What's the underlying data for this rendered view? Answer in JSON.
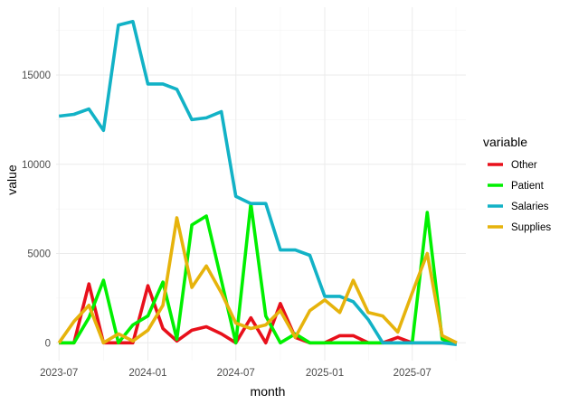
{
  "chart_data": {
    "type": "line",
    "xlabel": "month",
    "ylabel": "value",
    "legend_title": "variable",
    "legend_position": "right",
    "grid": true,
    "x": [
      "2023-07",
      "2023-08",
      "2023-09",
      "2023-10",
      "2023-11",
      "2023-12",
      "2024-01",
      "2024-02",
      "2024-03",
      "2024-04",
      "2024-05",
      "2024-06",
      "2024-07",
      "2024-08",
      "2024-09",
      "2024-10",
      "2024-11",
      "2024-12",
      "2025-01",
      "2025-02",
      "2025-03",
      "2025-04",
      "2025-05",
      "2025-06",
      "2025-07",
      "2025-08",
      "2025-09",
      "2025-10"
    ],
    "xlim": [
      "2023-06-25",
      "2025-10-20"
    ],
    "ylim": [
      -1000,
      18800
    ],
    "x_ticks": [
      {
        "date": "2023-07",
        "label": "2023-07"
      },
      {
        "date": "2024-01",
        "label": "2024-01"
      },
      {
        "date": "2024-07",
        "label": "2024-07"
      },
      {
        "date": "2025-01",
        "label": "2025-01"
      },
      {
        "date": "2025-07",
        "label": "2025-07"
      }
    ],
    "y_ticks": [
      {
        "value": 0,
        "label": "0"
      },
      {
        "value": 5000,
        "label": "5000"
      },
      {
        "value": 10000,
        "label": "10000"
      },
      {
        "value": 15000,
        "label": "15000"
      }
    ],
    "series": [
      {
        "name": "Other",
        "color": "#e8101b",
        "values": [
          0,
          0,
          3300,
          0,
          0,
          0,
          3200,
          800,
          100,
          700,
          900,
          500,
          0,
          1400,
          0,
          2200,
          300,
          0,
          0,
          400,
          400,
          0,
          0,
          300,
          0,
          0,
          0,
          0
        ]
      },
      {
        "name": "Patient",
        "color": "#00f000",
        "values": [
          0,
          0,
          1400,
          3500,
          0,
          1000,
          1500,
          3400,
          200,
          6600,
          7100,
          3500,
          0,
          7800,
          1500,
          0,
          500,
          0,
          0,
          0,
          0,
          0,
          0,
          0,
          0,
          7300,
          200,
          0
        ]
      },
      {
        "name": "Salaries",
        "color": "#12b2c6",
        "values": [
          12700,
          12800,
          13100,
          11900,
          17800,
          18000,
          14500,
          14500,
          14200,
          12500,
          12600,
          12950,
          8200,
          7800,
          7800,
          5200,
          5200,
          4900,
          2600,
          2600,
          2300,
          1300,
          0,
          0,
          0,
          0,
          0,
          -100
        ]
      },
      {
        "name": "Supplies",
        "color": "#e6b30c",
        "values": [
          0,
          1200,
          2100,
          0,
          500,
          100,
          700,
          2100,
          7000,
          3100,
          4300,
          2800,
          1100,
          800,
          1000,
          1800,
          300,
          1800,
          2400,
          1700,
          3500,
          1700,
          1500,
          600,
          2800,
          5000,
          400,
          0
        ]
      }
    ]
  }
}
